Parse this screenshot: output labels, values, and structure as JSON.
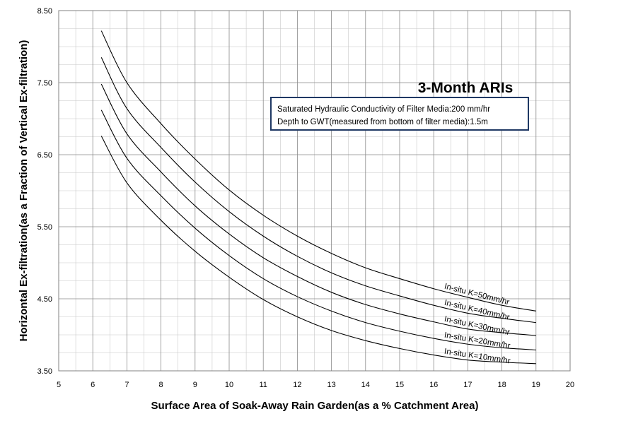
{
  "chart_data": {
    "type": "line",
    "title": "3-Month ARIs",
    "annotation_lines": [
      "Saturated Hydraulic Conductivity of Filter Media:200 mm/hr",
      "Depth to GWT(measured from bottom of filter media):1.5m"
    ],
    "xlabel": "Surface Area of Soak-Away Rain Garden(as a % Catchment Area)",
    "ylabel": "Horizontal Ex-filtration(as a Fraction of Vertical Ex-filtration)",
    "xlim": [
      5,
      20
    ],
    "ylim": [
      3.5,
      8.5
    ],
    "x_major_ticks": [
      "5",
      "6",
      "7",
      "8",
      "9",
      "10",
      "11",
      "12",
      "13",
      "14",
      "15",
      "16",
      "17",
      "18",
      "19",
      "20"
    ],
    "y_major_ticks": [
      "3.50",
      "4.50",
      "5.50",
      "6.50",
      "7.50",
      "8.50"
    ],
    "grid": true,
    "x": [
      6.25,
      7,
      8,
      9,
      10,
      11,
      12,
      13,
      14,
      15,
      16,
      17,
      18,
      19
    ],
    "series": [
      {
        "name": "In-situ K=50mm/hr",
        "values": [
          8.22,
          7.5,
          6.93,
          6.44,
          6.01,
          5.66,
          5.37,
          5.13,
          4.93,
          4.78,
          4.64,
          4.52,
          4.41,
          4.33
        ]
      },
      {
        "name": "In-situ K=40mm/hr",
        "values": [
          7.85,
          7.14,
          6.6,
          6.12,
          5.71,
          5.37,
          5.09,
          4.86,
          4.68,
          4.54,
          4.41,
          4.3,
          4.23,
          4.17
        ]
      },
      {
        "name": "In-situ K=30mm/hr",
        "values": [
          7.48,
          6.79,
          6.26,
          5.79,
          5.4,
          5.07,
          4.81,
          4.59,
          4.42,
          4.29,
          4.18,
          4.08,
          4.03,
          3.99
        ]
      },
      {
        "name": "In-situ K=20mm/hr",
        "values": [
          7.12,
          6.45,
          5.93,
          5.48,
          5.1,
          4.78,
          4.53,
          4.33,
          4.17,
          4.05,
          3.95,
          3.87,
          3.82,
          3.79
        ]
      },
      {
        "name": "In-situ K=10mm/hr",
        "values": [
          6.76,
          6.11,
          5.59,
          5.16,
          4.8,
          4.49,
          4.25,
          4.06,
          3.92,
          3.81,
          3.72,
          3.65,
          3.62,
          3.6
        ]
      }
    ],
    "line_color": "#000000",
    "annotation_border_color": "#1f3864"
  }
}
